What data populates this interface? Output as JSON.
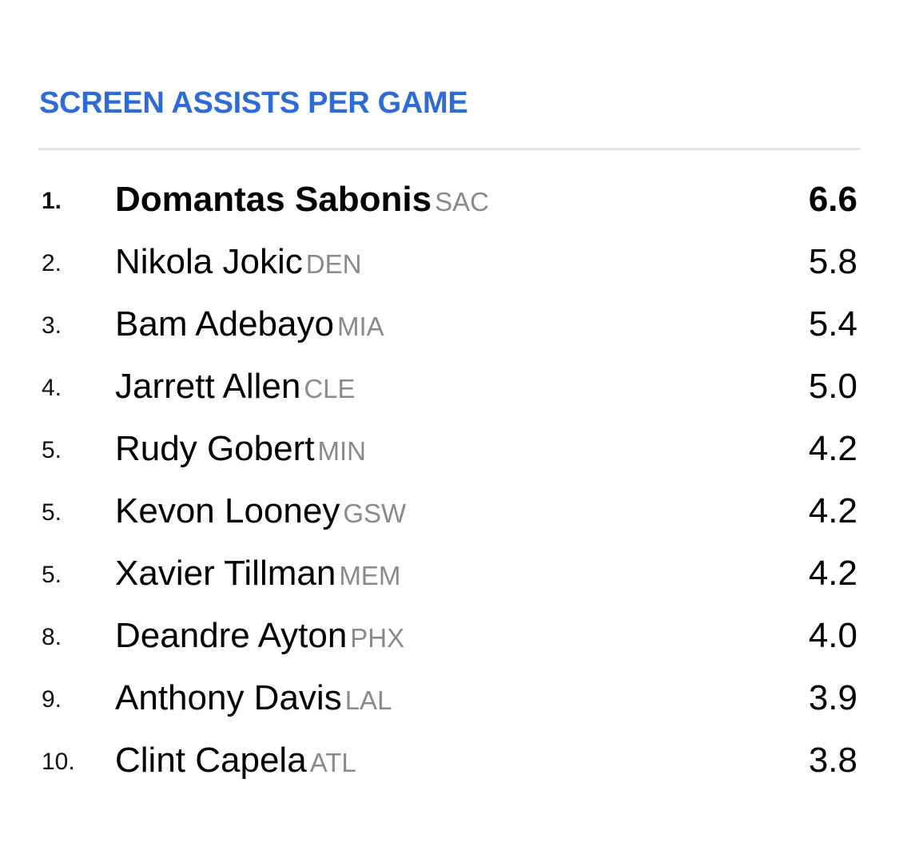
{
  "title": "SCREEN ASSISTS PER GAME",
  "colors": {
    "accent": "#2f6bd6",
    "team": "#8a8a8a",
    "divider": "#e4e5ea"
  },
  "rows": [
    {
      "rank": "1.",
      "player": "Domantas Sabonis",
      "team": "SAC",
      "value": "6.6"
    },
    {
      "rank": "2.",
      "player": "Nikola Jokic",
      "team": "DEN",
      "value": "5.8"
    },
    {
      "rank": "3.",
      "player": "Bam Adebayo",
      "team": "MIA",
      "value": "5.4"
    },
    {
      "rank": "4.",
      "player": "Jarrett Allen",
      "team": "CLE",
      "value": "5.0"
    },
    {
      "rank": "5.",
      "player": "Rudy Gobert",
      "team": "MIN",
      "value": "4.2"
    },
    {
      "rank": "5.",
      "player": "Kevon Looney",
      "team": "GSW",
      "value": "4.2"
    },
    {
      "rank": "5.",
      "player": "Xavier Tillman",
      "team": "MEM",
      "value": "4.2"
    },
    {
      "rank": "8.",
      "player": "Deandre Ayton",
      "team": "PHX",
      "value": "4.0"
    },
    {
      "rank": "9.",
      "player": "Anthony Davis",
      "team": "LAL",
      "value": "3.9"
    },
    {
      "rank": "10.",
      "player": "Clint Capela",
      "team": "ATL",
      "value": "3.8"
    }
  ]
}
